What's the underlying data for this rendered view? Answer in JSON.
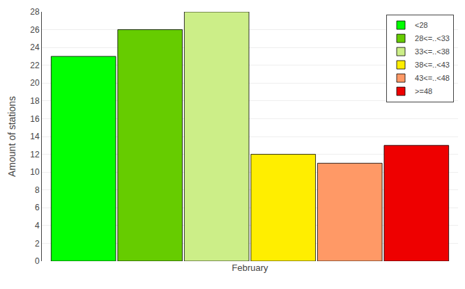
{
  "chart_data": {
    "type": "bar",
    "categories": [
      "February"
    ],
    "series": [
      {
        "name": "<28",
        "color": "#00ff00",
        "values": [
          23
        ]
      },
      {
        "name": "28<=..<33",
        "color": "#66cc00",
        "values": [
          26
        ]
      },
      {
        "name": "33<=..<38",
        "color": "#ccee88",
        "values": [
          28
        ]
      },
      {
        "name": "38<=..<43",
        "color": "#ffee00",
        "values": [
          12
        ]
      },
      {
        "name": "43<=..<48",
        "color": "#ff9966",
        "values": [
          11
        ]
      },
      {
        "name": ">=48",
        "color": "#ee0000",
        "values": [
          13
        ]
      }
    ],
    "ylabel": "Amount of stations",
    "ylim": [
      0,
      28
    ],
    "yticks": [
      0,
      2,
      4,
      6,
      8,
      10,
      12,
      14,
      16,
      18,
      20,
      22,
      24,
      26,
      28
    ],
    "grid": true,
    "legend": "upper right"
  }
}
